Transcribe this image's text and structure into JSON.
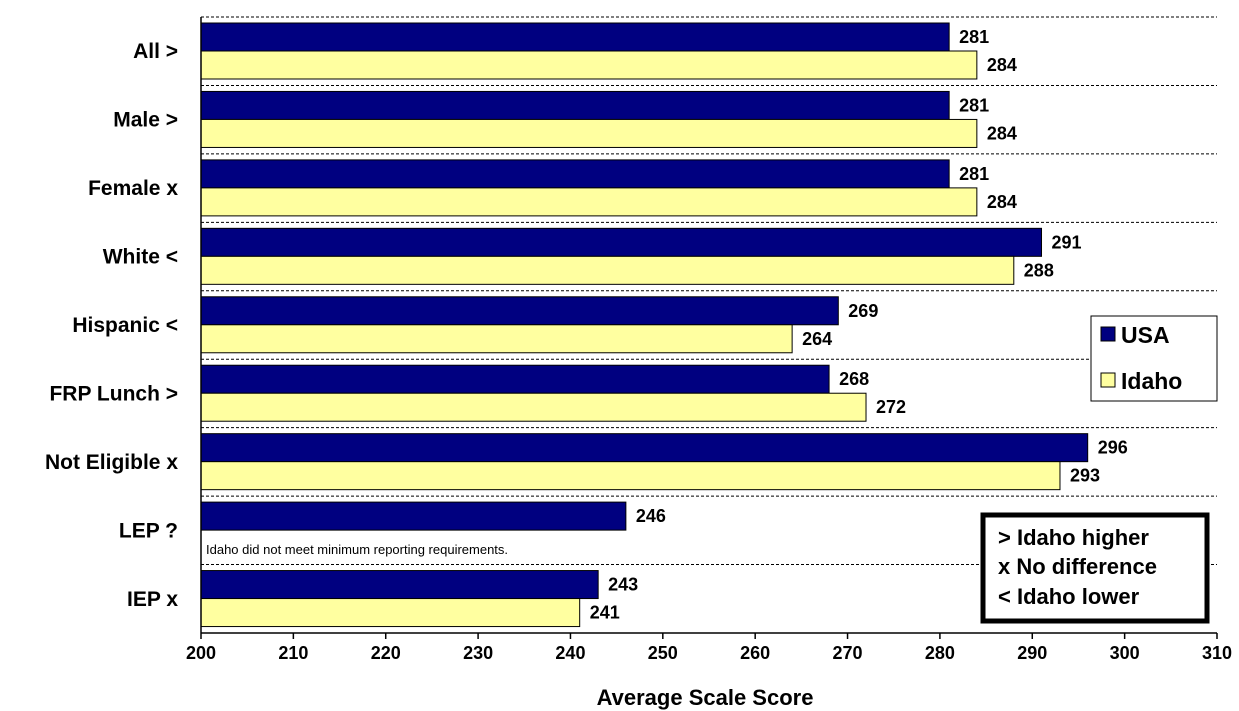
{
  "chart_data": {
    "type": "bar",
    "orientation": "horizontal",
    "categories": [
      "All >",
      "Male >",
      "Female x",
      "White <",
      "Hispanic <",
      "FRP Lunch >",
      "Not Eligible x",
      "LEP ?",
      "IEP x"
    ],
    "series": [
      {
        "name": "USA",
        "color": "#000080",
        "values": [
          281,
          281,
          281,
          291,
          269,
          268,
          296,
          246,
          243
        ]
      },
      {
        "name": "Idaho",
        "color": "#ffffa0",
        "values": [
          284,
          284,
          284,
          288,
          264,
          272,
          293,
          null,
          241
        ]
      }
    ],
    "xlabel": "Average Scale Score",
    "xlim": [
      200,
      310
    ],
    "xticks": [
      200,
      210,
      220,
      230,
      240,
      250,
      260,
      270,
      280,
      290,
      300,
      310
    ],
    "grid": "dashed category separators",
    "legend_position": "right",
    "annotations": {
      "lep_note": "Idaho did not meet minimum reporting requirements.",
      "key": [
        "> Idaho higher",
        "x No difference",
        "< Idaho lower"
      ]
    }
  }
}
